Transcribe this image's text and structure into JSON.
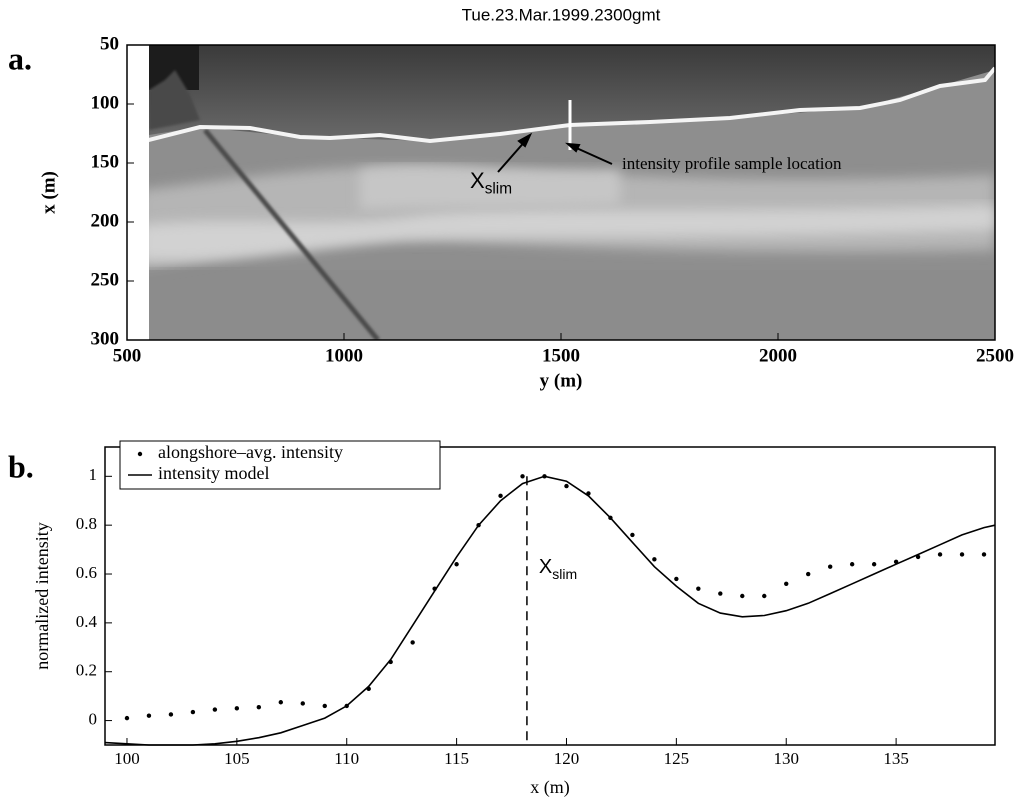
{
  "chart_data": [
    {
      "type": "image",
      "title": "Tue.23.Mar.1999.2300gmt",
      "panel_label": "a.",
      "xlabel": "y (m)",
      "ylabel": "x (m)",
      "xlim": [
        500,
        2500
      ],
      "xticks": [
        500,
        1000,
        1500,
        2000,
        2500
      ],
      "ylim": [
        50,
        300
      ],
      "y_reversed": true,
      "yticks": [
        50,
        100,
        150,
        200,
        250,
        300
      ],
      "sample_location": 1520,
      "annotations": [
        {
          "text": "X",
          "sub": "slim"
        },
        {
          "text": "intensity profile sample location"
        }
      ]
    },
    {
      "type": "line",
      "panel_label": "b.",
      "xlabel": "x (m)",
      "ylabel": "normalized intensity",
      "xlim": [
        99,
        139.5
      ],
      "xticks": [
        100,
        105,
        110,
        115,
        120,
        125,
        130,
        135
      ],
      "ylim": [
        -0.1,
        1.12
      ],
      "yticks": [
        0,
        0.2,
        0.4,
        0.6,
        0.8,
        1
      ],
      "legend": "upper left",
      "vline_x": 118.2,
      "annotation": {
        "text": "X",
        "sub": "slim"
      },
      "series": [
        {
          "name": "alongshore–avg. intensity",
          "type": "scatter",
          "color": "#000000",
          "x": [
            100,
            101,
            102,
            103,
            104,
            105,
            106,
            107,
            108,
            109,
            110,
            111,
            112,
            113,
            114,
            115,
            116,
            117,
            118,
            119,
            120,
            121,
            122,
            123,
            124,
            125,
            126,
            127,
            128,
            129,
            130,
            131,
            132,
            133,
            134,
            135,
            136,
            137,
            138,
            139
          ],
          "values": [
            0.01,
            0.02,
            0.025,
            0.035,
            0.045,
            0.05,
            0.055,
            0.075,
            0.07,
            0.06,
            0.06,
            0.13,
            0.24,
            0.32,
            0.54,
            0.64,
            0.8,
            0.92,
            1.0,
            1.0,
            0.96,
            0.93,
            0.83,
            0.76,
            0.66,
            0.58,
            0.54,
            0.52,
            0.51,
            0.51,
            0.56,
            0.6,
            0.63,
            0.64,
            0.64,
            0.65,
            0.67,
            0.68,
            0.68,
            0.68
          ]
        },
        {
          "name": "intensity model",
          "type": "line",
          "color": "#000000",
          "x": [
            99,
            100,
            101,
            102,
            103,
            104,
            105,
            106,
            107,
            108,
            109,
            110,
            111,
            112,
            113,
            114,
            115,
            116,
            117,
            118,
            119,
            120,
            121,
            122,
            123,
            124,
            125,
            126,
            127,
            128,
            129,
            130,
            131,
            132,
            133,
            134,
            135,
            136,
            137,
            138,
            139,
            139.5
          ],
          "values": [
            -0.09,
            -0.095,
            -0.1,
            -0.1,
            -0.1,
            -0.095,
            -0.085,
            -0.07,
            -0.05,
            -0.02,
            0.01,
            0.06,
            0.14,
            0.25,
            0.39,
            0.53,
            0.67,
            0.8,
            0.9,
            0.97,
            1.0,
            0.98,
            0.92,
            0.83,
            0.73,
            0.63,
            0.55,
            0.48,
            0.44,
            0.425,
            0.43,
            0.45,
            0.48,
            0.52,
            0.56,
            0.6,
            0.64,
            0.68,
            0.72,
            0.76,
            0.79,
            0.8
          ]
        }
      ]
    }
  ]
}
